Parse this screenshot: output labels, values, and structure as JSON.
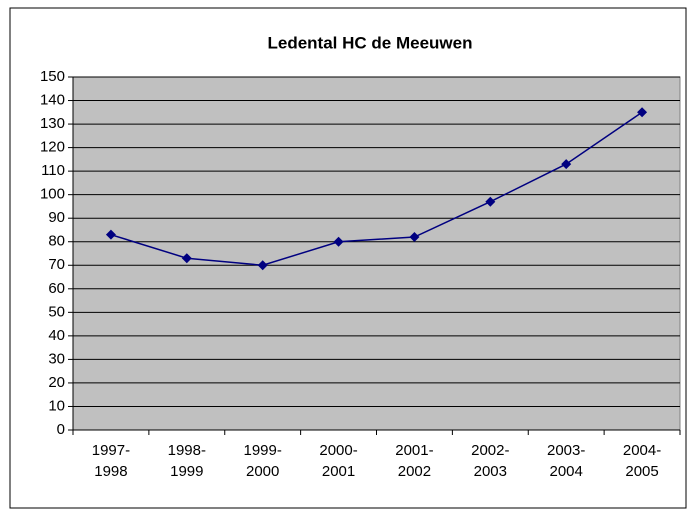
{
  "chart_data": {
    "type": "line",
    "title": "Ledental HC de Meeuwen",
    "categories": [
      "1997-\n1998",
      "1998-\n1999",
      "1999-\n2000",
      "2000-\n2001",
      "2001-\n2002",
      "2002-\n2003",
      "2003-\n2004",
      "2004-\n2005"
    ],
    "series": [
      {
        "name": "Ledental",
        "color": "#000080",
        "values": [
          83,
          73,
          70,
          80,
          82,
          97,
          113,
          135
        ]
      }
    ],
    "ylim": [
      0,
      150
    ],
    "yticks": [
      0,
      10,
      20,
      30,
      40,
      50,
      60,
      70,
      80,
      90,
      100,
      110,
      120,
      130,
      140,
      150
    ],
    "grid": true,
    "plot_background": "#c0c0c0"
  }
}
